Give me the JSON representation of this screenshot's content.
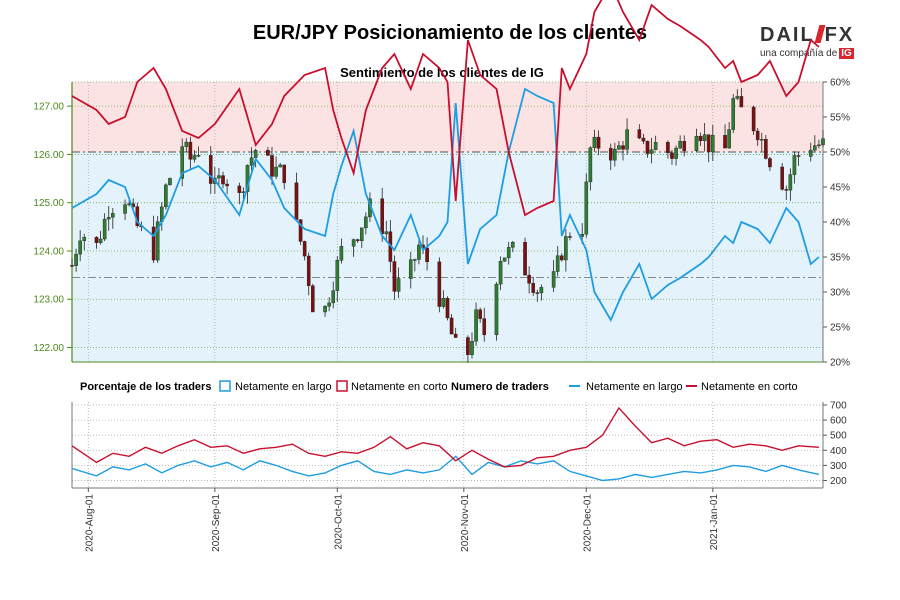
{
  "header": {
    "title": "EUR/JPY Posicionamiento de los clientes",
    "subtitle": "Sentimiento de los clientes de IG",
    "logo_brand_left": "DAIL",
    "logo_brand_right": "FX",
    "logo_tagline": "una compañía de",
    "logo_ig": "IG"
  },
  "colors": {
    "long": "#1e9de3",
    "short": "#c8102e",
    "bull_candle": "#2e7d32",
    "bear_candle": "#7a1010",
    "short_fill": "#fbe3e3",
    "long_fill": "#e3f2fb",
    "price_axis": "#4c8a1a"
  },
  "chart_data": [
    {
      "type": "candlestick",
      "name": "price",
      "ylabel_left": "",
      "price_ticks": [
        122.0,
        123.0,
        124.0,
        125.0,
        126.0,
        127.0
      ],
      "price_range": [
        121.7,
        127.5
      ],
      "pct_ticks": [
        20,
        25,
        30,
        35,
        40,
        45,
        50,
        55,
        60
      ],
      "pct_range": [
        20,
        60
      ],
      "x_range": [
        "2020-07-28",
        "2021-01-28"
      ],
      "reference_price": 123.45,
      "reference_pct": 50,
      "price_path": [
        [
          "2020-07-28",
          123.7
        ],
        [
          "2020-07-30",
          124.4
        ],
        [
          "2020-08-03",
          124.1
        ],
        [
          "2020-08-06",
          124.9
        ],
        [
          "2020-08-10",
          125.1
        ],
        [
          "2020-08-13",
          124.5
        ],
        [
          "2020-08-17",
          124.0
        ],
        [
          "2020-08-20",
          125.3
        ],
        [
          "2020-08-24",
          126.2
        ],
        [
          "2020-08-26",
          125.9
        ],
        [
          "2020-08-28",
          126.1
        ],
        [
          "2020-09-01",
          125.3
        ],
        [
          "2020-09-03",
          125.6
        ],
        [
          "2020-09-07",
          125.1
        ],
        [
          "2020-09-09",
          125.8
        ],
        [
          "2020-09-11",
          126.1
        ],
        [
          "2020-09-15",
          125.7
        ],
        [
          "2020-09-18",
          125.6
        ],
        [
          "2020-09-21",
          124.5
        ],
        [
          "2020-09-23",
          123.9
        ],
        [
          "2020-09-25",
          122.9
        ],
        [
          "2020-09-28",
          122.8
        ],
        [
          "2020-09-30",
          123.4
        ],
        [
          "2020-10-02",
          124.0
        ],
        [
          "2020-10-06",
          124.4
        ],
        [
          "2020-10-09",
          124.9
        ],
        [
          "2020-10-13",
          124.4
        ],
        [
          "2020-10-15",
          123.2
        ],
        [
          "2020-10-19",
          123.6
        ],
        [
          "2020-10-21",
          124.1
        ],
        [
          "2020-10-23",
          123.8
        ],
        [
          "2020-10-27",
          122.8
        ],
        [
          "2020-10-30",
          122.0
        ],
        [
          "2020-11-02",
          121.9
        ],
        [
          "2020-11-04",
          122.6
        ],
        [
          "2020-11-06",
          122.3
        ],
        [
          "2020-11-10",
          123.9
        ],
        [
          "2020-11-13",
          124.0
        ],
        [
          "2020-11-17",
          123.5
        ],
        [
          "2020-11-19",
          123.2
        ],
        [
          "2020-11-23",
          123.4
        ],
        [
          "2020-11-25",
          124.0
        ],
        [
          "2020-11-27",
          124.4
        ],
        [
          "2020-11-30",
          124.5
        ],
        [
          "2020-12-02",
          126.1
        ],
        [
          "2020-12-04",
          126.2
        ],
        [
          "2020-12-08",
          126.0
        ],
        [
          "2020-12-11",
          126.4
        ],
        [
          "2020-12-15",
          126.1
        ],
        [
          "2020-12-18",
          126.2
        ],
        [
          "2020-12-22",
          126.0
        ],
        [
          "2020-12-24",
          126.2
        ],
        [
          "2020-12-28",
          126.6
        ],
        [
          "2020-12-31",
          126.2
        ],
        [
          "2021-01-04",
          126.1
        ],
        [
          "2021-01-06",
          127.1
        ],
        [
          "2021-01-08",
          126.9
        ],
        [
          "2021-01-12",
          126.5
        ],
        [
          "2021-01-15",
          125.9
        ],
        [
          "2021-01-19",
          125.3
        ],
        [
          "2021-01-21",
          125.9
        ],
        [
          "2021-01-25",
          126.2
        ],
        [
          "2021-01-27",
          126.2
        ]
      ],
      "long_pct_path": [
        [
          "2020-07-28",
          42
        ],
        [
          "2020-08-03",
          44
        ],
        [
          "2020-08-06",
          46
        ],
        [
          "2020-08-10",
          45
        ],
        [
          "2020-08-13",
          40
        ],
        [
          "2020-08-17",
          38
        ],
        [
          "2020-08-20",
          41
        ],
        [
          "2020-08-24",
          47
        ],
        [
          "2020-08-28",
          48
        ],
        [
          "2020-09-01",
          46
        ],
        [
          "2020-09-07",
          41
        ],
        [
          "2020-09-11",
          49
        ],
        [
          "2020-09-15",
          46
        ],
        [
          "2020-09-18",
          42
        ],
        [
          "2020-09-23",
          39
        ],
        [
          "2020-09-28",
          38
        ],
        [
          "2020-09-30",
          44
        ],
        [
          "2020-10-02",
          48
        ],
        [
          "2020-10-05",
          53
        ],
        [
          "2020-10-08",
          44
        ],
        [
          "2020-10-12",
          38
        ],
        [
          "2020-10-15",
          36
        ],
        [
          "2020-10-19",
          41
        ],
        [
          "2020-10-22",
          36
        ],
        [
          "2020-10-26",
          38
        ],
        [
          "2020-10-28",
          40
        ],
        [
          "2020-10-30",
          57
        ],
        [
          "2020-11-02",
          34
        ],
        [
          "2020-11-05",
          39
        ],
        [
          "2020-11-09",
          41
        ],
        [
          "2020-11-12",
          50
        ],
        [
          "2020-11-16",
          59
        ],
        [
          "2020-11-19",
          58
        ],
        [
          "2020-11-23",
          57
        ],
        [
          "2020-11-25",
          38
        ],
        [
          "2020-11-27",
          41
        ],
        [
          "2020-12-01",
          36
        ],
        [
          "2020-12-03",
          30
        ],
        [
          "2020-12-07",
          26
        ],
        [
          "2020-12-10",
          30
        ],
        [
          "2020-12-14",
          34
        ],
        [
          "2020-12-17",
          29
        ],
        [
          "2020-12-21",
          31
        ],
        [
          "2020-12-24",
          32
        ],
        [
          "2020-12-29",
          34
        ],
        [
          "2020-12-31",
          35
        ],
        [
          "2021-01-04",
          38
        ],
        [
          "2021-01-06",
          37
        ],
        [
          "2021-01-08",
          40
        ],
        [
          "2021-01-12",
          39
        ],
        [
          "2021-01-15",
          37
        ],
        [
          "2021-01-19",
          42
        ],
        [
          "2021-01-22",
          40
        ],
        [
          "2021-01-25",
          34
        ],
        [
          "2021-01-27",
          35
        ]
      ],
      "short_pct_path": [
        [
          "2020-07-28",
          58
        ],
        [
          "2020-08-03",
          56
        ],
        [
          "2020-08-06",
          54
        ],
        [
          "2020-08-10",
          55
        ],
        [
          "2020-08-13",
          60
        ],
        [
          "2020-08-17",
          62
        ],
        [
          "2020-08-20",
          59
        ],
        [
          "2020-08-24",
          53
        ],
        [
          "2020-08-28",
          52
        ],
        [
          "2020-09-01",
          54
        ],
        [
          "2020-09-07",
          59
        ],
        [
          "2020-09-11",
          51
        ],
        [
          "2020-09-15",
          54
        ],
        [
          "2020-09-18",
          58
        ],
        [
          "2020-09-23",
          61
        ],
        [
          "2020-09-28",
          62
        ],
        [
          "2020-09-30",
          56
        ],
        [
          "2020-10-02",
          52
        ],
        [
          "2020-10-05",
          47
        ],
        [
          "2020-10-08",
          56
        ],
        [
          "2020-10-12",
          62
        ],
        [
          "2020-10-15",
          64
        ],
        [
          "2020-10-19",
          59
        ],
        [
          "2020-10-22",
          64
        ],
        [
          "2020-10-26",
          62
        ],
        [
          "2020-10-28",
          60
        ],
        [
          "2020-10-30",
          43
        ],
        [
          "2020-11-02",
          66
        ],
        [
          "2020-11-05",
          61
        ],
        [
          "2020-11-09",
          59
        ],
        [
          "2020-11-12",
          50
        ],
        [
          "2020-11-16",
          41
        ],
        [
          "2020-11-19",
          42
        ],
        [
          "2020-11-23",
          43
        ],
        [
          "2020-11-25",
          62
        ],
        [
          "2020-11-27",
          59
        ],
        [
          "2020-12-01",
          64
        ],
        [
          "2020-12-03",
          70
        ],
        [
          "2020-12-07",
          74
        ],
        [
          "2020-12-10",
          70
        ],
        [
          "2020-12-14",
          66
        ],
        [
          "2020-12-17",
          71
        ],
        [
          "2020-12-21",
          69
        ],
        [
          "2020-12-24",
          68
        ],
        [
          "2020-12-29",
          66
        ],
        [
          "2020-12-31",
          65
        ],
        [
          "2021-01-04",
          62
        ],
        [
          "2021-01-06",
          63
        ],
        [
          "2021-01-08",
          60
        ],
        [
          "2021-01-12",
          61
        ],
        [
          "2021-01-15",
          63
        ],
        [
          "2021-01-19",
          58
        ],
        [
          "2021-01-22",
          60
        ],
        [
          "2021-01-25",
          66
        ],
        [
          "2021-01-27",
          65
        ]
      ]
    },
    {
      "type": "line",
      "name": "traders",
      "legend_left_title": "Porcentaje de los traders",
      "legend_left_long": "Netamente en largo",
      "legend_left_short": "Netamente en corto",
      "legend_right_title": "Numero de traders",
      "legend_right_long": "Netamente en largo",
      "legend_right_short": "Netamente en corto",
      "y_ticks": [
        200,
        300,
        400,
        500,
        600,
        700
      ],
      "y_range": [
        150,
        720
      ],
      "x_ticks": [
        "2020-Aug-01",
        "2020-Sep-01",
        "2020-Oct-01",
        "2020-Nov-01",
        "2020-Dec-01",
        "2021-Jan-01"
      ],
      "x_tick_dates": [
        "2020-08-01",
        "2020-09-01",
        "2020-10-01",
        "2020-11-01",
        "2020-12-01",
        "2021-01-01"
      ],
      "series": [
        {
          "name": "Netamente en largo",
          "points": [
            [
              "2020-07-28",
              280
            ],
            [
              "2020-08-03",
              230
            ],
            [
              "2020-08-07",
              290
            ],
            [
              "2020-08-11",
              270
            ],
            [
              "2020-08-15",
              310
            ],
            [
              "2020-08-19",
              250
            ],
            [
              "2020-08-23",
              300
            ],
            [
              "2020-08-27",
              330
            ],
            [
              "2020-08-31",
              290
            ],
            [
              "2020-09-04",
              320
            ],
            [
              "2020-09-08",
              270
            ],
            [
              "2020-09-12",
              330
            ],
            [
              "2020-09-16",
              300
            ],
            [
              "2020-09-20",
              260
            ],
            [
              "2020-09-24",
              230
            ],
            [
              "2020-09-28",
              250
            ],
            [
              "2020-10-02",
              300
            ],
            [
              "2020-10-06",
              330
            ],
            [
              "2020-10-10",
              260
            ],
            [
              "2020-10-14",
              240
            ],
            [
              "2020-10-18",
              270
            ],
            [
              "2020-10-22",
              250
            ],
            [
              "2020-10-26",
              270
            ],
            [
              "2020-10-30",
              360
            ],
            [
              "2020-11-03",
              240
            ],
            [
              "2020-11-07",
              320
            ],
            [
              "2020-11-11",
              290
            ],
            [
              "2020-11-15",
              330
            ],
            [
              "2020-11-19",
              310
            ],
            [
              "2020-11-23",
              330
            ],
            [
              "2020-11-27",
              260
            ],
            [
              "2020-12-01",
              230
            ],
            [
              "2020-12-05",
              200
            ],
            [
              "2020-12-09",
              210
            ],
            [
              "2020-12-13",
              240
            ],
            [
              "2020-12-17",
              220
            ],
            [
              "2020-12-21",
              240
            ],
            [
              "2020-12-25",
              260
            ],
            [
              "2020-12-29",
              250
            ],
            [
              "2021-01-02",
              270
            ],
            [
              "2021-01-06",
              300
            ],
            [
              "2021-01-10",
              290
            ],
            [
              "2021-01-14",
              260
            ],
            [
              "2021-01-18",
              300
            ],
            [
              "2021-01-22",
              270
            ],
            [
              "2021-01-27",
              240
            ]
          ]
        },
        {
          "name": "Netamente en corto",
          "points": [
            [
              "2020-07-28",
              430
            ],
            [
              "2020-08-03",
              320
            ],
            [
              "2020-08-07",
              380
            ],
            [
              "2020-08-11",
              360
            ],
            [
              "2020-08-15",
              420
            ],
            [
              "2020-08-19",
              380
            ],
            [
              "2020-08-23",
              430
            ],
            [
              "2020-08-27",
              470
            ],
            [
              "2020-08-31",
              420
            ],
            [
              "2020-09-04",
              430
            ],
            [
              "2020-09-08",
              380
            ],
            [
              "2020-09-12",
              410
            ],
            [
              "2020-09-16",
              420
            ],
            [
              "2020-09-20",
              440
            ],
            [
              "2020-09-24",
              380
            ],
            [
              "2020-09-28",
              360
            ],
            [
              "2020-10-02",
              390
            ],
            [
              "2020-10-06",
              380
            ],
            [
              "2020-10-10",
              420
            ],
            [
              "2020-10-14",
              490
            ],
            [
              "2020-10-18",
              410
            ],
            [
              "2020-10-22",
              450
            ],
            [
              "2020-10-26",
              430
            ],
            [
              "2020-10-30",
              330
            ],
            [
              "2020-11-03",
              400
            ],
            [
              "2020-11-07",
              340
            ],
            [
              "2020-11-11",
              290
            ],
            [
              "2020-11-15",
              300
            ],
            [
              "2020-11-19",
              350
            ],
            [
              "2020-11-23",
              360
            ],
            [
              "2020-11-27",
              400
            ],
            [
              "2020-12-01",
              420
            ],
            [
              "2020-12-05",
              500
            ],
            [
              "2020-12-09",
              680
            ],
            [
              "2020-12-13",
              560
            ],
            [
              "2020-12-17",
              450
            ],
            [
              "2020-12-21",
              480
            ],
            [
              "2020-12-25",
              430
            ],
            [
              "2020-12-29",
              460
            ],
            [
              "2021-01-02",
              470
            ],
            [
              "2021-01-06",
              420
            ],
            [
              "2021-01-10",
              440
            ],
            [
              "2021-01-14",
              430
            ],
            [
              "2021-01-18",
              400
            ],
            [
              "2021-01-22",
              430
            ],
            [
              "2021-01-27",
              420
            ]
          ]
        }
      ]
    }
  ]
}
